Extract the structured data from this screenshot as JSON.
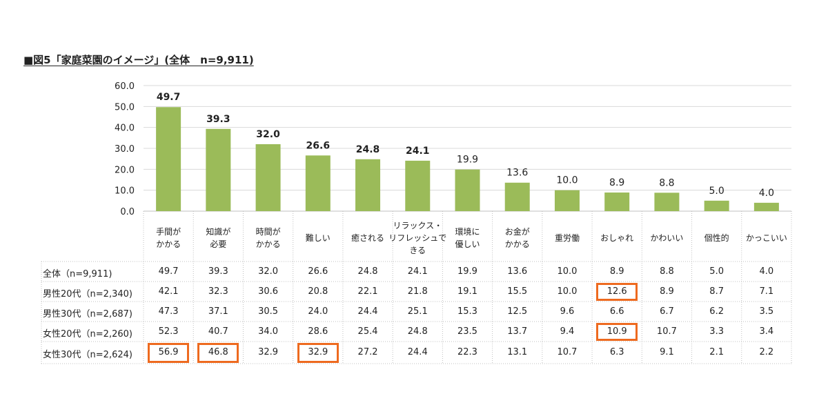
{
  "title": "■図5「家庭菜園のイメージ」(全体　n=9,911)",
  "colors": {
    "bar": "#9bbb59",
    "grid": "#d9d9d9",
    "highlight": "#ee6a1f"
  },
  "chart_data": {
    "type": "bar",
    "title": "■図5「家庭菜園のイメージ」(全体　n=9,911)",
    "ylim": [
      0,
      60
    ],
    "yticks": [
      "0.0",
      "10.0",
      "20.0",
      "30.0",
      "40.0",
      "50.0",
      "60.0"
    ],
    "grid": true,
    "categories": [
      [
        "手間が",
        "かかる"
      ],
      [
        "知識が",
        "必要"
      ],
      [
        "時間が",
        "かかる"
      ],
      [
        "難しい"
      ],
      [
        "癒される"
      ],
      [
        "リラックス・",
        "リフレッシュで",
        "きる"
      ],
      [
        "環境に",
        "優しい"
      ],
      [
        "お金が",
        "かかる"
      ],
      [
        "重労働"
      ],
      [
        "おしゃれ"
      ],
      [
        "かわいい"
      ],
      [
        "個性的"
      ],
      [
        "かっこいい"
      ]
    ],
    "values": [
      49.7,
      39.3,
      32.0,
      26.6,
      24.8,
      24.1,
      19.9,
      13.6,
      10.0,
      8.9,
      8.8,
      5.0,
      4.0
    ],
    "value_labels": [
      "49.7",
      "39.3",
      "32.0",
      "26.6",
      "24.8",
      "24.1",
      "19.9",
      "13.6",
      "10.0",
      "8.9",
      "8.8",
      "5.0",
      "4.0"
    ],
    "bold_labels": [
      true,
      true,
      true,
      true,
      true,
      true,
      false,
      false,
      false,
      false,
      false,
      false,
      false
    ],
    "table": {
      "rows": [
        {
          "label": "全体（n=9,911)",
          "values": [
            "49.7",
            "39.3",
            "32.0",
            "26.6",
            "24.8",
            "24.1",
            "19.9",
            "13.6",
            "10.0",
            "8.9",
            "8.8",
            "5.0",
            "4.0"
          ],
          "highlight": []
        },
        {
          "label": "男性20代（n=2,340)",
          "values": [
            "42.1",
            "32.3",
            "30.6",
            "20.8",
            "22.1",
            "21.8",
            "19.1",
            "15.5",
            "10.0",
            "12.6",
            "8.9",
            "8.7",
            "7.1"
          ],
          "highlight": [
            9
          ]
        },
        {
          "label": "男性30代（n=2,687)",
          "values": [
            "47.3",
            "37.1",
            "30.5",
            "24.0",
            "24.4",
            "25.1",
            "15.3",
            "12.5",
            "9.6",
            "6.6",
            "6.7",
            "6.2",
            "3.5"
          ],
          "highlight": []
        },
        {
          "label": "女性20代（n=2,260)",
          "values": [
            "52.3",
            "40.7",
            "34.0",
            "28.6",
            "25.4",
            "24.8",
            "23.5",
            "13.7",
            "9.4",
            "10.9",
            "10.7",
            "3.3",
            "3.4"
          ],
          "highlight": [
            9
          ]
        },
        {
          "label": "女性30代（n=2,624)",
          "values": [
            "56.9",
            "46.8",
            "32.9",
            "32.9",
            "27.2",
            "24.4",
            "22.3",
            "13.1",
            "10.7",
            "6.3",
            "9.1",
            "2.1",
            "2.2"
          ],
          "highlight": [
            0,
            1,
            3
          ]
        }
      ]
    }
  }
}
